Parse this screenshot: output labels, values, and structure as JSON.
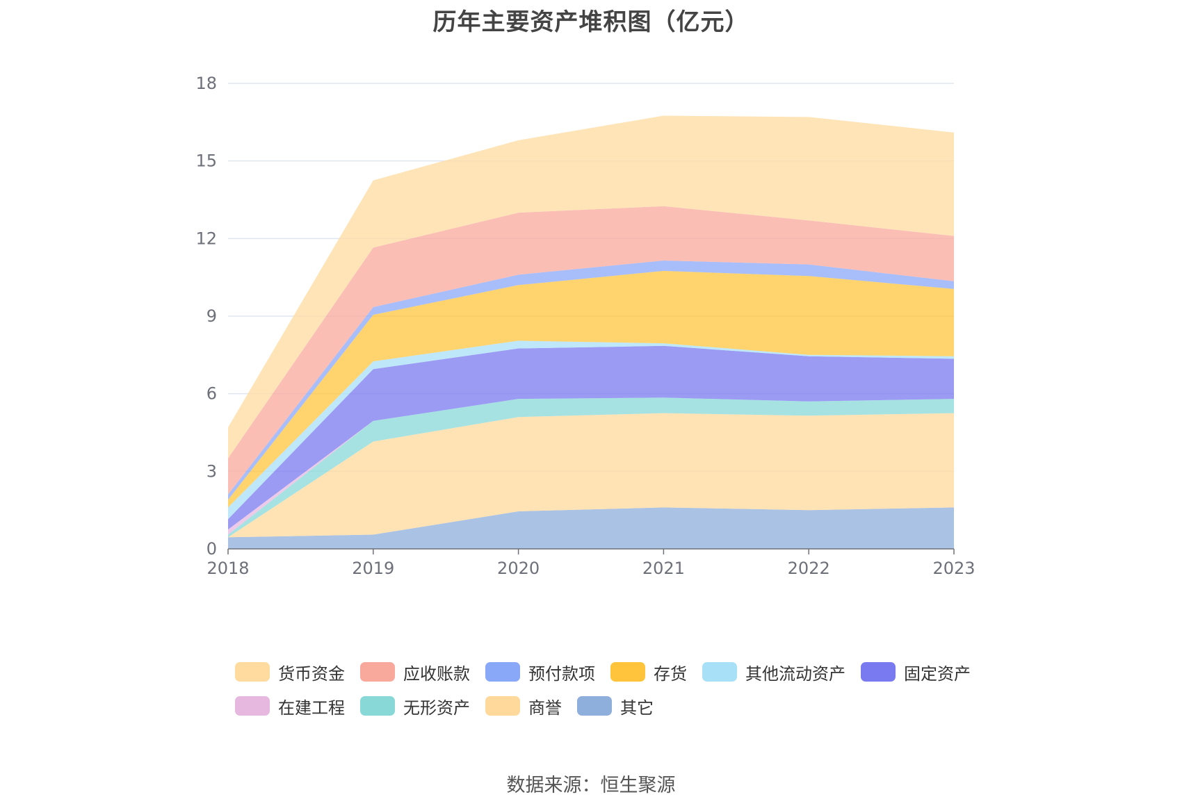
{
  "title": "历年主要资产堆积图（亿元）",
  "source": "数据来源：恒生聚源",
  "chart_data": {
    "type": "area",
    "stacked": true,
    "x": [
      "2018",
      "2019",
      "2020",
      "2021",
      "2022",
      "2023"
    ],
    "ylim": [
      0,
      18
    ],
    "yticks": [
      0,
      3,
      6,
      9,
      12,
      15,
      18
    ],
    "grid": true,
    "legend_position": "bottom",
    "series": [
      {
        "name": "其它",
        "color": "#8eaedb",
        "values": [
          0.45,
          0.55,
          1.45,
          1.6,
          1.5,
          1.6
        ]
      },
      {
        "name": "商誉",
        "color": "#ffd99c",
        "values": [
          0.0,
          3.6,
          3.65,
          3.65,
          3.65,
          3.65
        ]
      },
      {
        "name": "无形资产",
        "color": "#88d8d8",
        "values": [
          0.1,
          0.8,
          0.7,
          0.6,
          0.55,
          0.55
        ]
      },
      {
        "name": "在建工程",
        "color": "#e6b8e0",
        "values": [
          0.2,
          0.0,
          0.0,
          0.0,
          0.0,
          0.0
        ]
      },
      {
        "name": "固定资产",
        "color": "#7a7af0",
        "values": [
          0.4,
          2.0,
          1.95,
          2.0,
          1.75,
          1.55
        ]
      },
      {
        "name": "其他流动资产",
        "color": "#a8e0f8",
        "values": [
          0.45,
          0.3,
          0.3,
          0.1,
          0.05,
          0.1
        ]
      },
      {
        "name": "存货",
        "color": "#ffc43c",
        "values": [
          0.3,
          1.8,
          2.15,
          2.8,
          3.05,
          2.6
        ]
      },
      {
        "name": "预付款项",
        "color": "#8aa8f8",
        "values": [
          0.2,
          0.3,
          0.4,
          0.4,
          0.45,
          0.3
        ]
      },
      {
        "name": "应收账款",
        "color": "#f9a89c",
        "values": [
          1.4,
          2.3,
          2.4,
          2.1,
          1.7,
          1.75
        ]
      },
      {
        "name": "货币资金",
        "color": "#ffdba0",
        "values": [
          1.2,
          2.6,
          2.8,
          3.5,
          4.0,
          4.0
        ]
      }
    ]
  },
  "legend": [
    {
      "name": "货币资金",
      "color": "#ffdba0"
    },
    {
      "name": "应收账款",
      "color": "#f9a89c"
    },
    {
      "name": "预付款项",
      "color": "#8aa8f8"
    },
    {
      "name": "存货",
      "color": "#ffc43c"
    },
    {
      "name": "其他流动资产",
      "color": "#a8e0f8"
    },
    {
      "name": "固定资产",
      "color": "#7a7af0"
    },
    {
      "name": "在建工程",
      "color": "#e6b8e0"
    },
    {
      "name": "无形资产",
      "color": "#88d8d8"
    },
    {
      "name": "商誉",
      "color": "#ffd99c"
    },
    {
      "name": "其它",
      "color": "#8eaedb"
    }
  ]
}
